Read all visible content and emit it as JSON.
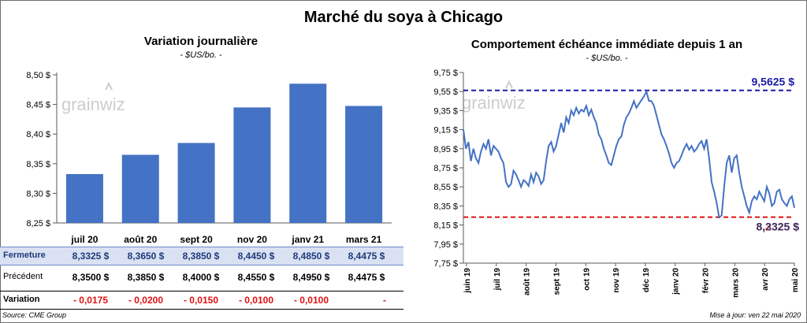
{
  "title": "Marché du soya à Chicago",
  "left_panel": {
    "title": "Variation journalière",
    "units": "- $US/bo. -"
  },
  "right_panel": {
    "title": "Comportement échéance immédiate depuis 1 an",
    "units": "- $US/bo. -"
  },
  "logo_text": "grainwiz",
  "table": {
    "row_labels": [
      "Fermeture",
      "Précédent",
      "Variation"
    ],
    "fermeture": [
      "8,3325  $",
      "8,3650  $",
      "8,3850  $",
      "8,4450  $",
      "8,4850  $",
      "8,4475  $"
    ],
    "precedent": [
      "8,3500  $",
      "8,3850  $",
      "8,4000  $",
      "8,4550  $",
      "8,4950  $",
      "8,4475  $"
    ],
    "variation": [
      "- 0,0175",
      "- 0,0200",
      "- 0,0150",
      "- 0,0100",
      "- 0,0100",
      "-"
    ]
  },
  "footer": {
    "source": "Source: CME Group",
    "update": "Mise à jour: ven 22 mai 2020"
  },
  "colors": {
    "bar": "#4472c4",
    "line": "#4472c4",
    "max_line": "#1a1aa8",
    "min_line": "#e01010",
    "table_highlight": "#d9e1f2"
  },
  "chart_data": [
    {
      "type": "bar",
      "categories": [
        "juil 20",
        "août 20",
        "sept 20",
        "nov 20",
        "janv 21",
        "mars 21"
      ],
      "values": [
        8.3325,
        8.365,
        8.385,
        8.445,
        8.485,
        8.4475
      ],
      "ylim": [
        8.25,
        8.5
      ],
      "yticks": [
        8.25,
        8.3,
        8.35,
        8.4,
        8.45,
        8.5
      ],
      "ytick_labels": [
        "8,25 $",
        "8,30 $",
        "8,35 $",
        "8,40 $",
        "8,45 $",
        "8,50 $"
      ],
      "grid": false
    },
    {
      "type": "line",
      "xlabels": [
        "juin 19",
        "juil 19",
        "août 19",
        "sept 19",
        "oct 19",
        "nov 19",
        "déc 19",
        "janv 20",
        "févr 20",
        "mars 20",
        "avr 20",
        "mai 20"
      ],
      "series": [
        {
          "values": [
            9.15,
            8.95,
            9.02,
            8.82,
            8.95,
            8.85,
            8.8,
            8.92,
            9.0,
            8.95,
            9.05,
            8.88,
            8.98,
            8.95,
            8.92,
            8.85,
            8.8,
            8.6,
            8.55,
            8.58,
            8.72,
            8.68,
            8.62,
            8.55,
            8.62,
            8.6,
            8.56,
            8.68,
            8.6,
            8.7,
            8.66,
            8.58,
            8.62,
            8.82,
            8.98,
            9.02,
            8.92,
            8.98,
            9.1,
            9.22,
            9.12,
            9.28,
            9.22,
            9.35,
            9.3,
            9.38,
            9.32,
            9.36,
            9.34,
            9.4,
            9.3,
            9.36,
            9.28,
            9.22,
            9.1,
            9.05,
            8.95,
            8.88,
            8.8,
            8.78,
            8.88,
            8.98,
            9.05,
            9.08,
            9.2,
            9.28,
            9.32,
            9.38,
            9.45,
            9.38,
            9.42,
            9.46,
            9.5,
            9.55,
            9.45,
            9.45,
            9.4,
            9.3,
            9.2,
            9.1,
            9.05,
            8.98,
            8.9,
            8.8,
            8.75,
            8.8,
            8.82,
            8.88,
            8.95,
            9.0,
            8.94,
            8.98,
            8.92,
            8.95,
            9.0,
            9.03,
            8.95,
            9.05,
            8.85,
            8.6,
            8.5,
            8.38,
            8.23,
            8.25,
            8.55,
            8.8,
            8.88,
            8.7,
            8.85,
            8.88,
            8.7,
            8.55,
            8.45,
            8.35,
            8.28,
            8.4,
            8.45,
            8.42,
            8.5,
            8.45,
            8.4,
            8.55,
            8.48,
            8.35,
            8.38,
            8.5,
            8.52,
            8.42,
            8.38,
            8.35,
            8.42,
            8.45,
            8.33
          ]
        }
      ],
      "ylim": [
        7.75,
        9.75
      ],
      "yticks": [
        7.75,
        7.95,
        8.15,
        8.35,
        8.55,
        8.75,
        8.95,
        9.15,
        9.35,
        9.55,
        9.75
      ],
      "ytick_labels": [
        "7,75 $",
        "7,95 $",
        "8,15 $",
        "8,35 $",
        "8,55 $",
        "8,75 $",
        "8,95 $",
        "9,15 $",
        "9,35 $",
        "9,55 $",
        "9,75 $"
      ],
      "max_value": 9.5625,
      "max_label": "9,5625  $",
      "min_value": 8.2325,
      "min_label": "8,2325  $",
      "last_value": 8.33,
      "last_label": "8,3325  $",
      "grid": false
    }
  ]
}
